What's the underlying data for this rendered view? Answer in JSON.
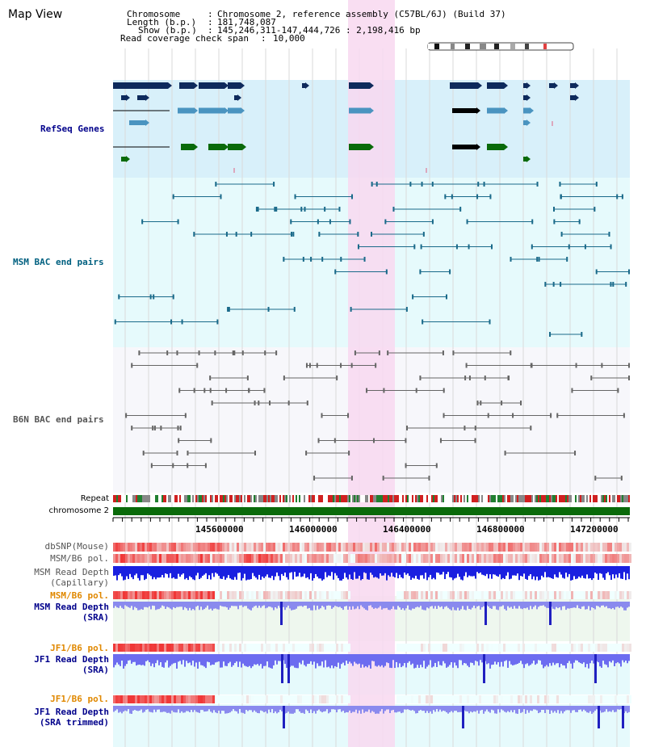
{
  "title": "Map View",
  "header": {
    "chromosome_label": "Chromosome",
    "chromosome_value": "Chromosome 2, reference assembly (C57BL/6J) (Build 37)",
    "length_label": "Length (b.p.)",
    "length_value": "181,748,087",
    "show_label": "Show (b.p.)",
    "show_value": "145,246,311-147,444,726 : 2,198,416 bp",
    "coverage_label": "Read coverage check span",
    "coverage_value": "10,000"
  },
  "tracks": {
    "refseq": "RefSeq Genes",
    "msm_bac": "MSM BAC end pairs",
    "b6n_bac": "B6N BAC end pairs",
    "repeat": "Repeat",
    "chromosome": "chromosome 2",
    "dbsnp": "dbSNP(Mouse)",
    "msm_b6_pol": "MSM/B6 pol.",
    "msm_read_depth_cap_1": "MSM Read Depth",
    "msm_read_depth_cap_2": "(Capillary)",
    "msm_b6_pol_2": "MSM/B6 pol.",
    "msm_read_depth_sra_1": "MSM Read Depth",
    "msm_read_depth_sra_2": "(SRA)",
    "jf1_b6_pol": "JF1/B6 pol.",
    "jf1_read_depth_sra_1": "JF1 Read Depth",
    "jf1_read_depth_sra_2": "(SRA)",
    "jf1_b6_pol_2": "JF1/B6 pol.",
    "jf1_read_depth_trim_1": "JF1 Read Depth",
    "jf1_read_depth_trim_2": "(SRA trimmed)"
  },
  "axis": {
    "ticks": [
      "145600000",
      "146000000",
      "146400000",
      "146800000",
      "147200000"
    ]
  },
  "colors": {
    "refseq_bg": "#d8f0fa",
    "msm_bac_bg": "#e6fafc",
    "b6n_bac_bg": "#f7f7fb",
    "highlight": "#f8d8f0",
    "refseq_dark": "#0e2a5c",
    "refseq_light": "#4a94c0",
    "refseq_green": "#0a6a0a",
    "msm_bac": "#1a6a8a",
    "b6n_bac": "#666666",
    "chromosome": "#0a6a0a",
    "read_depth": "#3030d0",
    "label_blue": "#00008b",
    "label_orange": "#e08800",
    "label_teal": "#006080"
  }
}
